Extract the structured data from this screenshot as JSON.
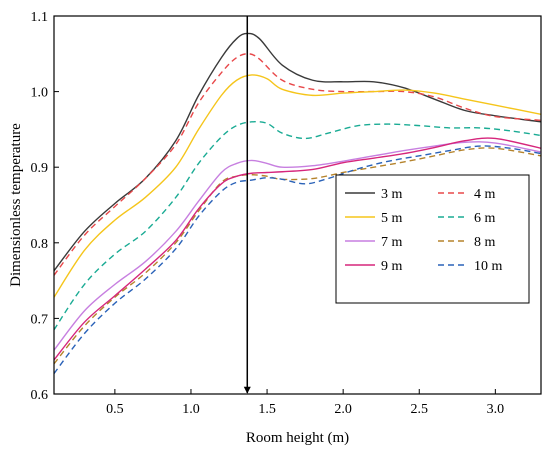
{
  "chart_data": {
    "type": "line",
    "title": "",
    "xlabel": "Room height (m)",
    "ylabel": "Dimensionless temperature",
    "xlim": [
      0.1,
      3.3
    ],
    "ylim": [
      0.6,
      1.1
    ],
    "xticks": [
      0.5,
      1.0,
      1.5,
      2.0,
      2.5,
      3.0
    ],
    "xtick_labels": [
      "0.5",
      "1.0",
      "1.5",
      "2.0",
      "2.5",
      "3.0"
    ],
    "yticks": [
      0.6,
      0.7,
      0.8,
      0.9,
      1.0,
      1.1
    ],
    "ytick_labels": [
      "0.6",
      "0.7",
      "0.8",
      "0.9",
      "1.0",
      "1.1"
    ],
    "grid": false,
    "legend_position": "center-right",
    "annotation": {
      "type": "vertical-arrow",
      "x": 1.37
    },
    "series": [
      {
        "name": "3 m",
        "color": "#3a3a3a",
        "dash": "solid",
        "x": [
          0.1,
          0.3,
          0.5,
          0.7,
          0.9,
          1.05,
          1.2,
          1.3,
          1.37,
          1.45,
          1.6,
          1.8,
          2.0,
          2.2,
          2.4,
          2.6,
          2.8,
          3.0,
          3.3
        ],
        "y": [
          0.763,
          0.815,
          0.852,
          0.885,
          0.935,
          0.995,
          1.045,
          1.07,
          1.077,
          1.07,
          1.035,
          1.015,
          1.013,
          1.013,
          1.005,
          0.99,
          0.975,
          0.968,
          0.96
        ]
      },
      {
        "name": "4 m",
        "color": "#e8484a",
        "dash": "dashed",
        "x": [
          0.1,
          0.3,
          0.5,
          0.7,
          0.9,
          1.05,
          1.2,
          1.3,
          1.38,
          1.45,
          1.6,
          1.8,
          2.0,
          2.2,
          2.4,
          2.6,
          2.8,
          3.0,
          3.3
        ],
        "y": [
          0.757,
          0.81,
          0.848,
          0.885,
          0.93,
          0.985,
          1.025,
          1.045,
          1.05,
          1.043,
          1.015,
          1.003,
          1.0,
          1.0,
          1.0,
          0.993,
          0.978,
          0.967,
          0.962
        ]
      },
      {
        "name": "5 m",
        "color": "#f5c51b",
        "dash": "solid",
        "x": [
          0.1,
          0.3,
          0.5,
          0.7,
          0.9,
          1.05,
          1.2,
          1.3,
          1.4,
          1.5,
          1.6,
          1.8,
          2.0,
          2.2,
          2.4,
          2.6,
          2.8,
          3.0,
          3.3
        ],
        "y": [
          0.728,
          0.79,
          0.83,
          0.86,
          0.9,
          0.95,
          0.995,
          1.015,
          1.022,
          1.017,
          1.003,
          0.995,
          0.998,
          1.0,
          1.002,
          0.998,
          0.99,
          0.982,
          0.97
        ]
      },
      {
        "name": "6 m",
        "color": "#1aab94",
        "dash": "dashed",
        "x": [
          0.1,
          0.3,
          0.5,
          0.7,
          0.9,
          1.05,
          1.2,
          1.3,
          1.4,
          1.5,
          1.6,
          1.75,
          1.9,
          2.1,
          2.3,
          2.5,
          2.7,
          2.9,
          3.1,
          3.3
        ],
        "y": [
          0.685,
          0.745,
          0.785,
          0.815,
          0.86,
          0.905,
          0.94,
          0.955,
          0.96,
          0.958,
          0.945,
          0.938,
          0.945,
          0.955,
          0.957,
          0.955,
          0.952,
          0.952,
          0.948,
          0.942
        ]
      },
      {
        "name": "7 m",
        "color": "#c77fe0",
        "dash": "solid",
        "x": [
          0.1,
          0.3,
          0.5,
          0.7,
          0.9,
          1.05,
          1.2,
          1.3,
          1.4,
          1.5,
          1.6,
          1.8,
          2.0,
          2.2,
          2.4,
          2.6,
          2.8,
          3.0,
          3.3
        ],
        "y": [
          0.658,
          0.71,
          0.745,
          0.775,
          0.815,
          0.855,
          0.893,
          0.905,
          0.909,
          0.905,
          0.9,
          0.902,
          0.908,
          0.915,
          0.922,
          0.928,
          0.933,
          0.932,
          0.92
        ]
      },
      {
        "name": "8 m",
        "color": "#b5832b",
        "dash": "dashed",
        "x": [
          0.1,
          0.3,
          0.5,
          0.7,
          0.9,
          1.05,
          1.2,
          1.3,
          1.4,
          1.5,
          1.6,
          1.8,
          2.0,
          2.2,
          2.4,
          2.6,
          2.8,
          3.0,
          3.3
        ],
        "y": [
          0.64,
          0.69,
          0.728,
          0.76,
          0.8,
          0.842,
          0.88,
          0.888,
          0.89,
          0.888,
          0.884,
          0.885,
          0.893,
          0.9,
          0.907,
          0.915,
          0.923,
          0.925,
          0.915
        ]
      },
      {
        "name": "9 m",
        "color": "#d6267c",
        "dash": "solid",
        "x": [
          0.1,
          0.3,
          0.5,
          0.7,
          0.9,
          1.05,
          1.2,
          1.3,
          1.4,
          1.5,
          1.6,
          1.8,
          2.0,
          2.2,
          2.4,
          2.6,
          2.8,
          3.0,
          3.3
        ],
        "y": [
          0.645,
          0.695,
          0.73,
          0.765,
          0.803,
          0.845,
          0.878,
          0.888,
          0.892,
          0.893,
          0.894,
          0.897,
          0.906,
          0.912,
          0.918,
          0.926,
          0.935,
          0.938,
          0.925
        ]
      },
      {
        "name": "10 m",
        "color": "#2a62b8",
        "dash": "dashed",
        "x": [
          0.1,
          0.3,
          0.5,
          0.7,
          0.9,
          1.05,
          1.2,
          1.3,
          1.4,
          1.5,
          1.6,
          1.75,
          1.9,
          2.1,
          2.3,
          2.5,
          2.7,
          2.9,
          3.1,
          3.3
        ],
        "y": [
          0.627,
          0.68,
          0.72,
          0.752,
          0.792,
          0.835,
          0.868,
          0.88,
          0.883,
          0.886,
          0.884,
          0.878,
          0.885,
          0.898,
          0.908,
          0.915,
          0.922,
          0.928,
          0.925,
          0.918
        ]
      }
    ]
  }
}
